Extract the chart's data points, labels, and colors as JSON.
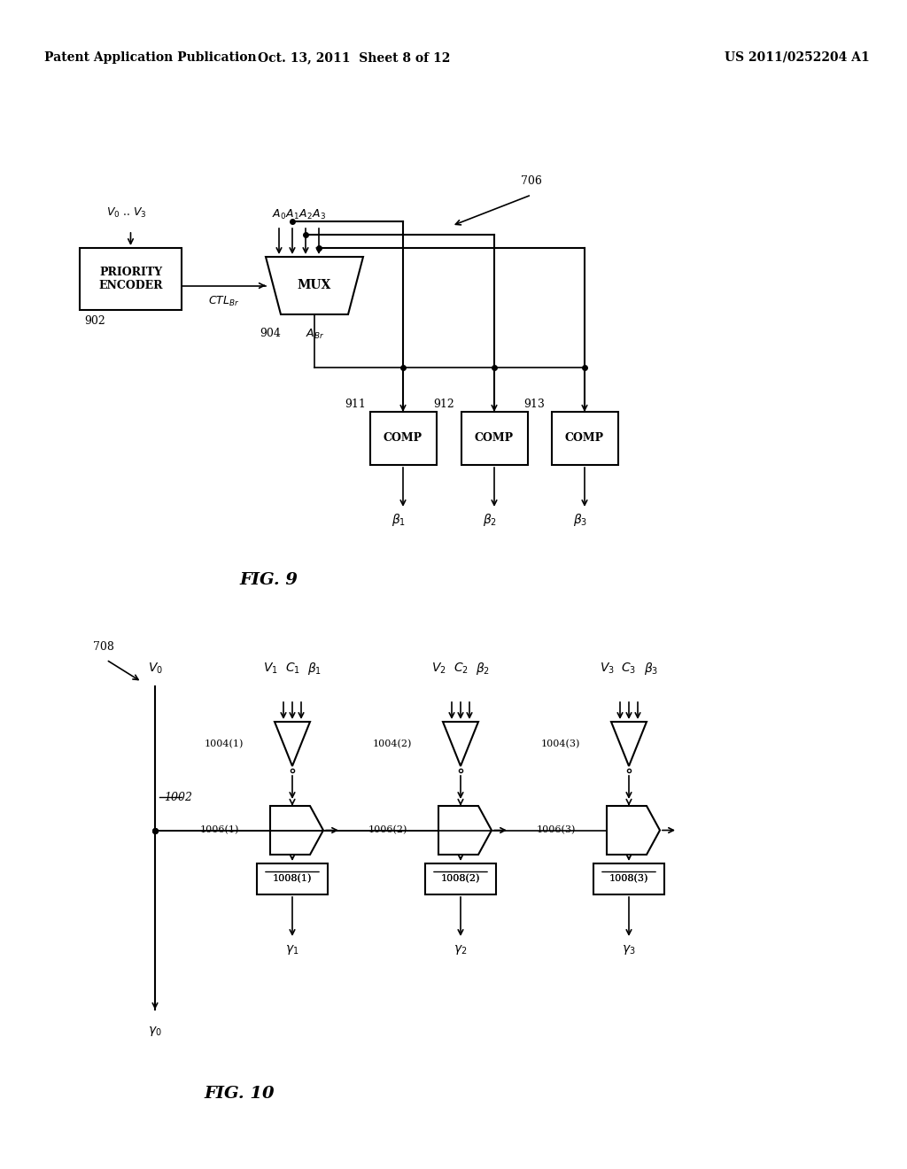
{
  "bg_color": "#ffffff",
  "header_left": "Patent Application Publication",
  "header_mid": "Oct. 13, 2011  Sheet 8 of 12",
  "header_right": "US 2011/0252204 A1",
  "fig9_label": "FIG. 9",
  "fig10_label": "FIG. 10"
}
